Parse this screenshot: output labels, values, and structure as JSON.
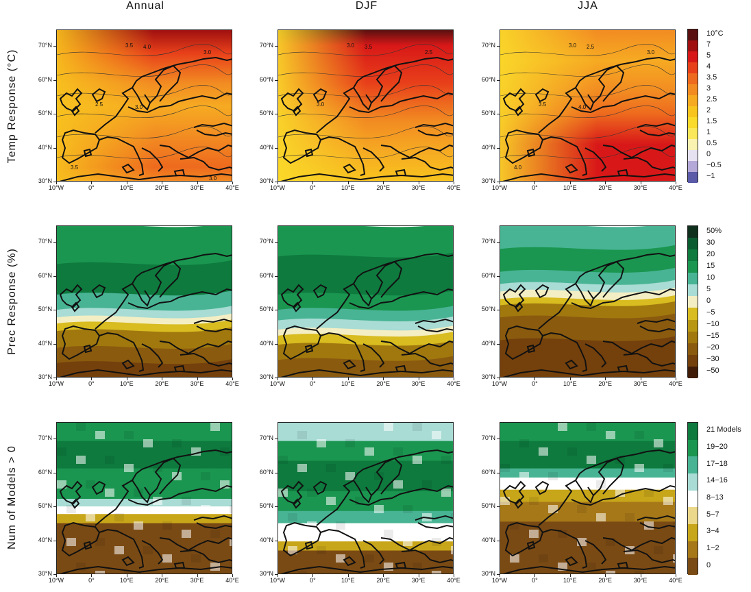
{
  "columns": [
    "Annual",
    "DJF",
    "JJA"
  ],
  "rows": [
    "Temp Response (°C)",
    "Prec Response (%)",
    "Num of Models > 0"
  ],
  "lat_ticks": [
    "70°N",
    "60°N",
    "50°N",
    "40°N",
    "30°N"
  ],
  "lon_ticks": [
    "10°W",
    "0°",
    "10°E",
    "20°E",
    "30°E",
    "40°E"
  ],
  "colorbars": [
    {
      "labels": [
        "10°C",
        "7",
        "5",
        "4",
        "3.5",
        "3",
        "2.5",
        "2",
        "1.5",
        "1",
        "0.5",
        "0",
        "−0.5",
        "−1"
      ],
      "colors": [
        "#5a1010",
        "#a01010",
        "#d81818",
        "#e8401a",
        "#ee6a1e",
        "#f28c22",
        "#f6aa22",
        "#f8c41e",
        "#fada2a",
        "#fbe85a",
        "#faf2b0",
        "#e6e2f2",
        "#b4a8d8",
        "#5a5aa8"
      ]
    },
    {
      "labels": [
        "50%",
        "30",
        "20",
        "15",
        "10",
        "5",
        "0",
        "−5",
        "−10",
        "−15",
        "−20",
        "−30",
        "−50"
      ],
      "colors": [
        "#10301e",
        "#0a5c30",
        "#0e7a3e",
        "#1a9650",
        "#48b494",
        "#a8dcd4",
        "#f4eec4",
        "#d8bc20",
        "#b89812",
        "#a0780e",
        "#8a5a0e",
        "#74400c",
        "#401c08"
      ]
    },
    {
      "labels": [
        "21 Models",
        "19−20",
        "17−18",
        "14−16",
        "8−13",
        "5−7",
        "3−4",
        "1−2",
        "0"
      ],
      "colors": [
        "#0e7a3e",
        "#1a9650",
        "#48b494",
        "#a8dcd4",
        "#ffffff",
        "#ecd88a",
        "#c8a61a",
        "#a67818",
        "#7a4a14"
      ]
    }
  ],
  "contour_labels": {
    "temp_annual": [
      "3.5",
      "4.0",
      "3.0",
      "2.5",
      "3.0",
      "3.5",
      "3.0"
    ],
    "temp_djf": [
      "3.0",
      "3.5",
      "2.5",
      "3.0"
    ],
    "temp_jja": [
      "3.0",
      "2.5",
      "3.0",
      "3.5",
      "4.0",
      "4.0"
    ]
  }
}
